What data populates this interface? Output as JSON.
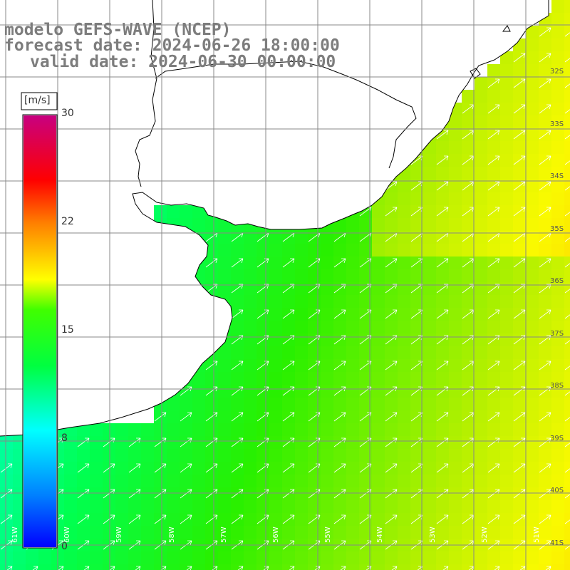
{
  "title": {
    "line1": "modelo GEFS-WAVE (NCEP)",
    "line2": "forecast date: 2024-06-26 18:00:00",
    "line3": "valid date: 2024-06-30 00:00:00"
  },
  "colorbar": {
    "unit": "[m/s]",
    "ticks": [
      "30",
      "22",
      "15",
      "8",
      "0"
    ],
    "colors": [
      "#0000ff",
      "#00ffff",
      "#00ff00",
      "#ffff00",
      "#ff0000",
      "#cc0080"
    ]
  },
  "lat_labels": [
    "32S",
    "33S",
    "34S",
    "35S",
    "36S",
    "37S",
    "38S",
    "39S",
    "40S",
    "41S"
  ],
  "lon_labels": [
    "61W",
    "60W",
    "59W",
    "58W",
    "57W",
    "56W",
    "55W",
    "54W",
    "53W",
    "52W",
    "51W"
  ],
  "colors": {
    "land": "#ffffff",
    "coast": "#000000",
    "grid": "#888888",
    "arrows": "#ffffff",
    "title_text": "#7d7d7d"
  },
  "wind_direction": "toward NE"
}
